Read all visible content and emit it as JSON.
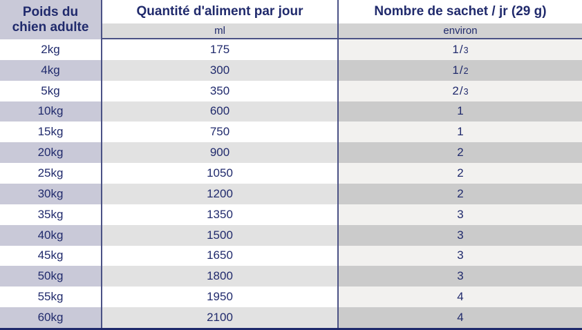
{
  "theme": {
    "text_navy": "#202a6c",
    "border_navy": "#4a5185",
    "lavender": "#c9c9d8",
    "col2_stripe": "#e2e2e2",
    "col3_light": "#f2f1ef",
    "col3_stripe": "#cbcbcb",
    "subheader2_bg": "#dbdbdb",
    "subheader3_bg": "#d2d2d2",
    "bottom_bar": "#1e296b"
  },
  "table": {
    "col1": {
      "header_line1": "Poids du",
      "header_line2": "chien adulte"
    },
    "col2": {
      "header": "Quantité d'aliment par jour",
      "subheader": "ml"
    },
    "col3": {
      "header": "Nombre de sachet / jr (29 g)",
      "subheader": "environ"
    },
    "rows": [
      {
        "weight": "2kg",
        "ml": "175",
        "sachets": "1/3"
      },
      {
        "weight": "4kg",
        "ml": "300",
        "sachets": "1/2"
      },
      {
        "weight": "5kg",
        "ml": "350",
        "sachets": "2/3"
      },
      {
        "weight": "10kg",
        "ml": "600",
        "sachets": "1"
      },
      {
        "weight": "15kg",
        "ml": "750",
        "sachets": "1"
      },
      {
        "weight": "20kg",
        "ml": "900",
        "sachets": "2"
      },
      {
        "weight": "25kg",
        "ml": "1050",
        "sachets": "2"
      },
      {
        "weight": "30kg",
        "ml": "1200",
        "sachets": "2"
      },
      {
        "weight": "35kg",
        "ml": "1350",
        "sachets": "3"
      },
      {
        "weight": "40kg",
        "ml": "1500",
        "sachets": "3"
      },
      {
        "weight": "45kg",
        "ml": "1650",
        "sachets": "3"
      },
      {
        "weight": "50kg",
        "ml": "1800",
        "sachets": "3"
      },
      {
        "weight": "55kg",
        "ml": "1950",
        "sachets": "4"
      },
      {
        "weight": "60kg",
        "ml": "2100",
        "sachets": "4"
      }
    ]
  }
}
